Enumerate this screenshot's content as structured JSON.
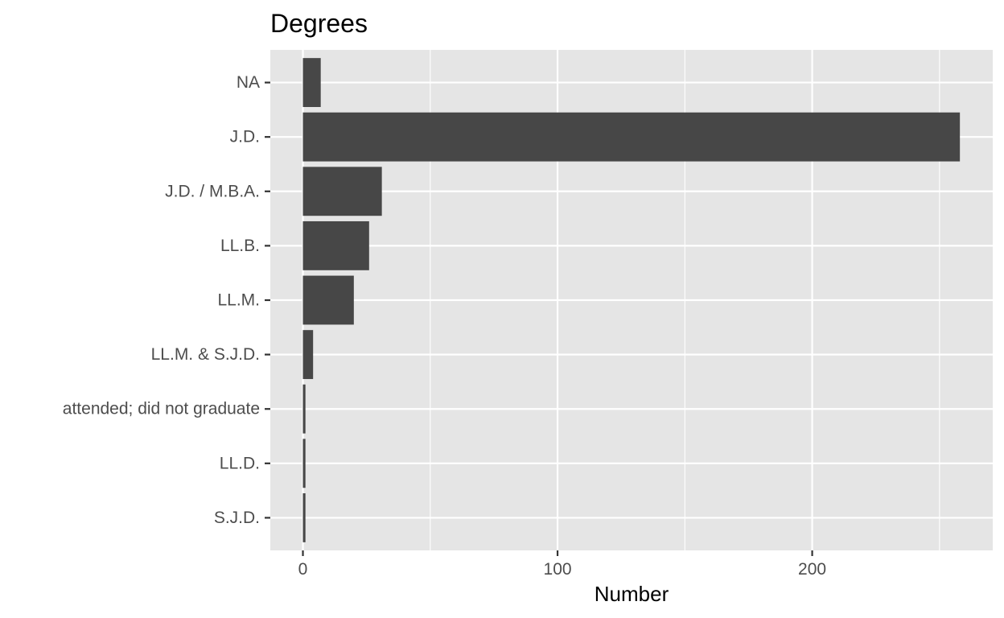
{
  "chart_data": {
    "type": "bar",
    "orientation": "horizontal",
    "title": "Degrees",
    "xlabel": "Number",
    "ylabel": "",
    "categories": [
      "NA",
      "J.D.",
      "J.D. / M.B.A.",
      "LL.B.",
      "LL.M.",
      "LL.M. & S.J.D.",
      "attended; did not graduate",
      "LL.D.",
      "S.J.D."
    ],
    "values": [
      7,
      258,
      31,
      26,
      20,
      4,
      1,
      1,
      1
    ],
    "xlim": [
      -12.8,
      270.9
    ],
    "x_ticks": [
      0,
      100,
      200
    ],
    "x_tick_labels": [
      "0",
      "100",
      "200"
    ],
    "grid": true,
    "legend": "none",
    "colors": {
      "panel_background": "#e5e5e5",
      "grid_line": "#ffffff",
      "bar_fill": "#474747",
      "tick_mark": "#333333",
      "tick_label": "#4d4d4d",
      "title": "#000000"
    }
  }
}
